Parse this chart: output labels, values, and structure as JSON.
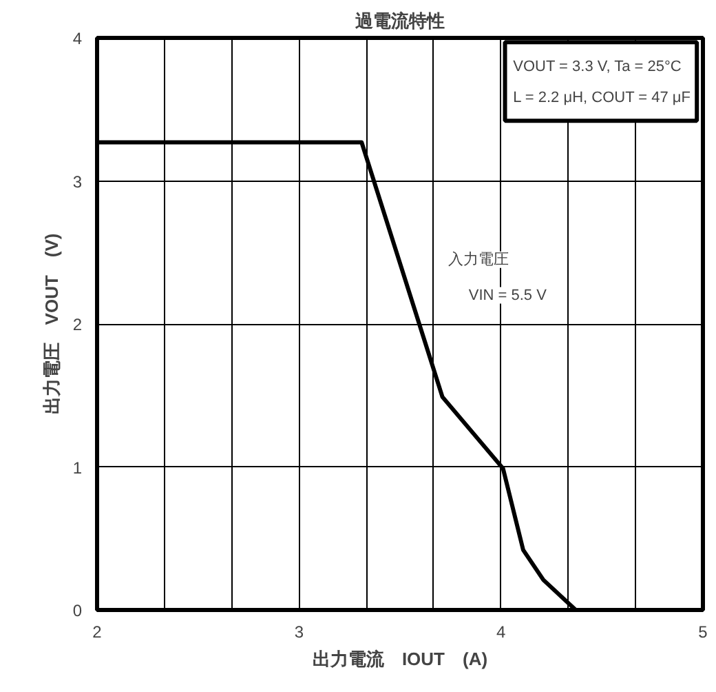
{
  "chart_data": {
    "type": "line",
    "title": "過電流特性",
    "xlabel": "出力電流　IOUT　(A)",
    "ylabel": "出力電圧　VOUT　(V)",
    "x": [
      2,
      3.31,
      3.71,
      4.01,
      4.11,
      4.21,
      4.37
    ],
    "series": [
      {
        "color": "#000000",
        "values": [
          3.27,
          3.27,
          1.49,
          0.99,
          0.42,
          0.21,
          0
        ]
      }
    ],
    "xlim": [
      2,
      5
    ],
    "ylim": [
      0,
      4
    ],
    "xticks": [
      2,
      {
        "value": 2.3333,
        "label": null
      },
      {
        "value": 2.6667,
        "label": null
      },
      3,
      {
        "value": 3.3333,
        "label": null
      },
      {
        "value": 3.6667,
        "label": null
      },
      4,
      {
        "value": 4.3333,
        "label": null
      },
      {
        "value": 4.6667,
        "label": null
      },
      5
    ],
    "yticks": [
      0,
      1,
      2,
      3,
      4
    ],
    "grid": true,
    "marker": "none",
    "line_style": "solid",
    "annotations": [
      "VOUT = 3.3 V, Ta = 25°C",
      "L = 2.2 μH, COUT = 47 μF",
      "入力電圧",
      "VIN = 5.5 V"
    ]
  }
}
